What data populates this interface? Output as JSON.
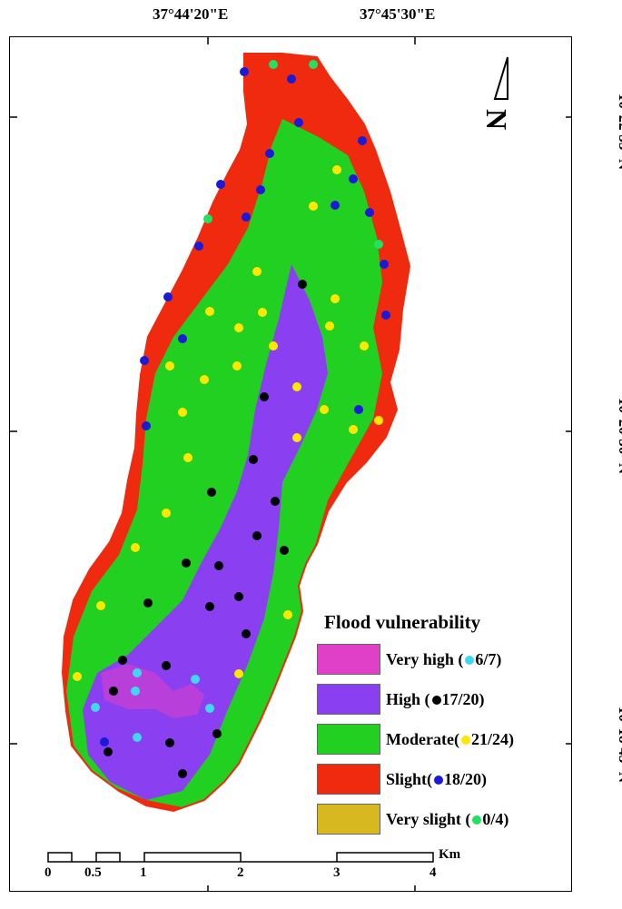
{
  "coordinates": {
    "lon_left": "37°44'20\"E",
    "lon_right": "37°45'30\"E",
    "lat_top": "10°22'55\"N",
    "lat_mid": "10°20'50\"N",
    "lat_bottom": "10°18'45\"N"
  },
  "north_arrow": {
    "label": "N"
  },
  "legend": {
    "title": "Flood vulnerability",
    "items": [
      {
        "label": "Very high (",
        "count": "6/7",
        "color": "#e040c8",
        "dot_color": "#40d8f0"
      },
      {
        "label": "High (",
        "count": "17/20",
        "color": "#8a3ff0",
        "dot_color": "#000000"
      },
      {
        "label": "Moderate(",
        "count": "21/24",
        "color": "#22d022",
        "dot_color": "#ffe800"
      },
      {
        "label": "Slight(",
        "count": "18/20",
        "color": "#f02a0e",
        "dot_color": "#1a1ad8"
      },
      {
        "label": "Very slight (",
        "count": "0/4",
        "color": "#d8b820",
        "dot_color": "#22e060"
      }
    ]
  },
  "scale_bar": {
    "unit": "Km",
    "ticks": [
      "0",
      "0.5",
      "1",
      "2",
      "3",
      "4"
    ]
  }
}
